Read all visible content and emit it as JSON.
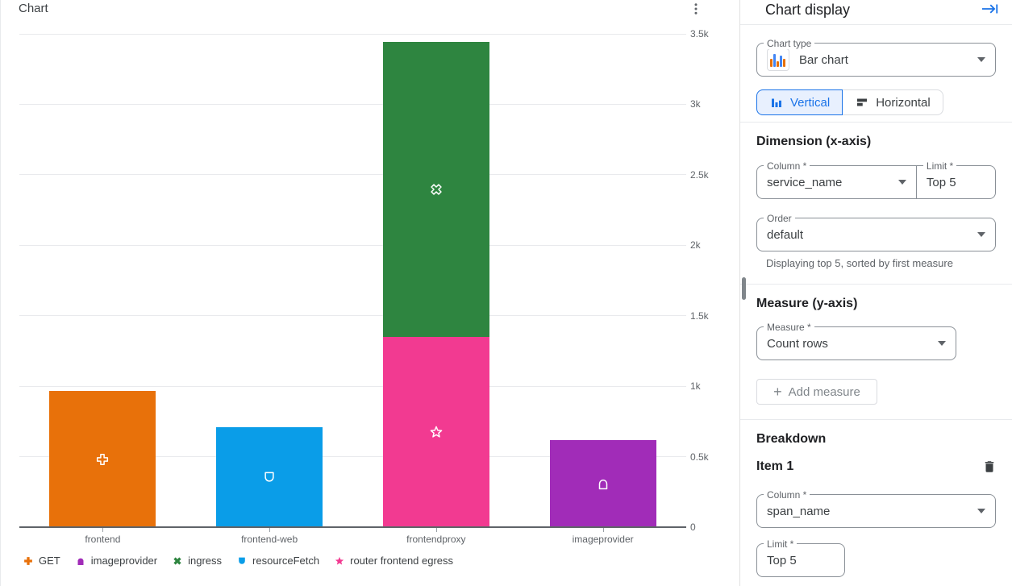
{
  "chart": {
    "title": "Chart",
    "menu_icon": "kebab-menu-icon",
    "legend": [
      {
        "label": "GET",
        "icon": "plus",
        "color": "#e8710a"
      },
      {
        "label": "imageprovider",
        "icon": "pentagon",
        "color": "#a12cb8"
      },
      {
        "label": "ingress",
        "icon": "cross-x",
        "color": "#2e8540"
      },
      {
        "label": "resourceFetch",
        "icon": "shield",
        "color": "#0a9de8"
      },
      {
        "label": "router frontend egress",
        "icon": "star",
        "color": "#f23a91"
      }
    ]
  },
  "chart_data": {
    "type": "bar",
    "stacked": true,
    "categories": [
      "frontend",
      "frontend-web",
      "frontendproxy",
      "imageprovider"
    ],
    "series": [
      {
        "name": "GET",
        "icon": "plus",
        "color": "#e8710a",
        "values": [
          966,
          0,
          0,
          0
        ]
      },
      {
        "name": "resourceFetch",
        "icon": "shield",
        "color": "#0a9de8",
        "values": [
          0,
          710,
          0,
          0
        ]
      },
      {
        "name": "router frontend egress",
        "icon": "star",
        "color": "#f23a91",
        "values": [
          0,
          0,
          1350,
          0
        ]
      },
      {
        "name": "ingress",
        "icon": "cross-x",
        "color": "#2e8540",
        "values": [
          0,
          0,
          2090,
          0
        ]
      },
      {
        "name": "imageprovider",
        "icon": "pentagon",
        "color": "#a12cb8",
        "values": [
          0,
          0,
          0,
          620
        ]
      }
    ],
    "ylim": [
      0,
      3500
    ],
    "y_ticks": [
      {
        "value": 3500,
        "label": "3.5k"
      },
      {
        "value": 3000,
        "label": "3k"
      },
      {
        "value": 2500,
        "label": "2.5k"
      },
      {
        "value": 2000,
        "label": "2k"
      },
      {
        "value": 1500,
        "label": "1.5k"
      },
      {
        "value": 1000,
        "label": "1k"
      },
      {
        "value": 500,
        "label": "0.5k"
      },
      {
        "value": 0,
        "label": "0"
      }
    ],
    "grid": true,
    "legend_position": "bottom"
  },
  "panel": {
    "title": "Chart display",
    "collapse_icon": "keyboard-tab-icon",
    "chart_type": {
      "label": "Chart type",
      "value": "Bar chart",
      "icon": "mini-bar-chart"
    },
    "orientation": {
      "options": [
        {
          "label": "Vertical",
          "selected": true
        },
        {
          "label": "Horizontal",
          "selected": false
        }
      ]
    },
    "dimension": {
      "heading": "Dimension (x-axis)",
      "column": {
        "label": "Column *",
        "value": "service_name"
      },
      "limit": {
        "label": "Limit *",
        "value": "Top 5"
      },
      "order": {
        "label": "Order",
        "value": "default"
      },
      "helper": "Displaying top 5, sorted by first measure"
    },
    "measure": {
      "heading": "Measure (y-axis)",
      "measure": {
        "label": "Measure *",
        "value": "Count rows"
      },
      "add_button": "Add measure"
    },
    "breakdown": {
      "heading": "Breakdown",
      "item_title": "Item 1",
      "delete_icon": "trash-icon",
      "column": {
        "label": "Column *",
        "value": "span_name"
      },
      "limit": {
        "label": "Limit *",
        "value": "Top 5"
      }
    },
    "accent_color": "#1a73e8"
  }
}
